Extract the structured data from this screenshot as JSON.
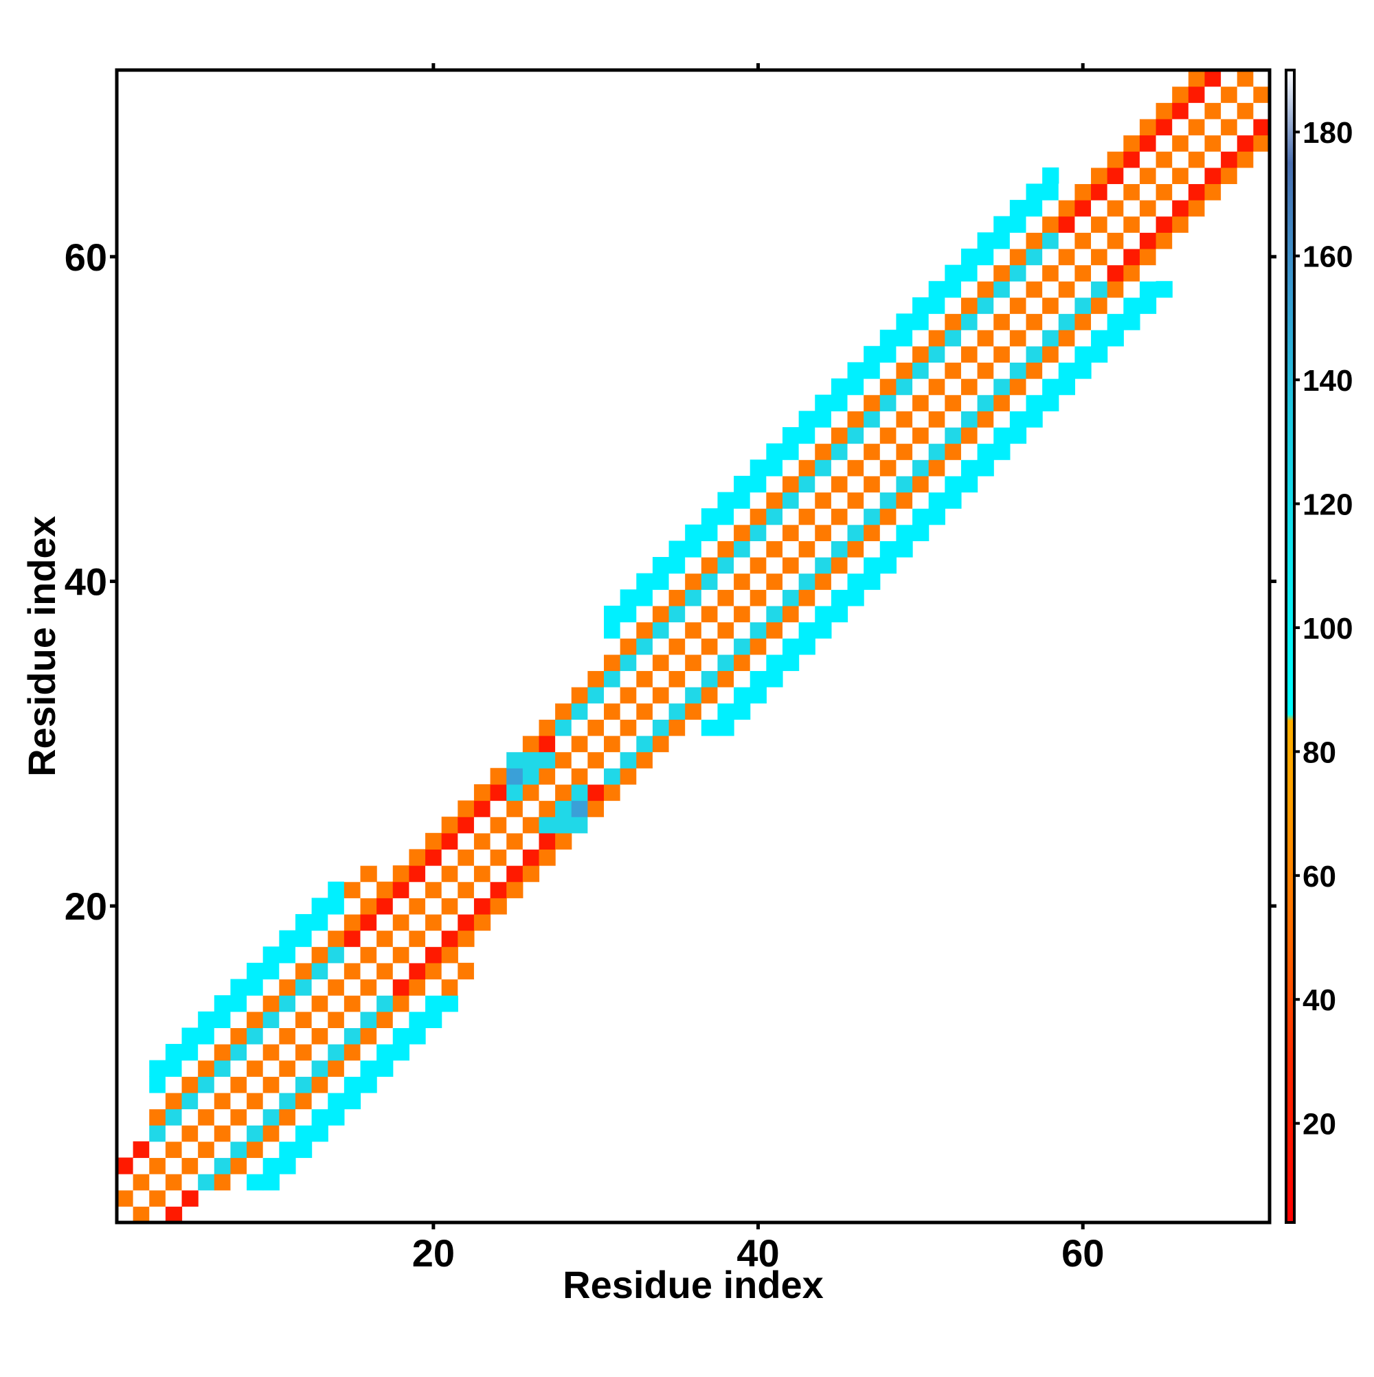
{
  "chart_data": {
    "type": "heatmap",
    "title": "",
    "xlabel": "Residue index",
    "ylabel": "Residue index",
    "xlim": [
      0.5,
      71.5
    ],
    "ylim": [
      0.5,
      71.5
    ],
    "x_ticks": [
      20,
      40,
      60
    ],
    "x_tick_labels": [
      "20",
      "40",
      "60"
    ],
    "y_ticks": [
      20,
      40,
      60
    ],
    "y_tick_labels": [
      "20",
      "40",
      "60"
    ],
    "grid": false,
    "colorbar": {
      "placement": "right",
      "range": [
        4,
        190
      ],
      "ticks": [
        20,
        40,
        60,
        80,
        100,
        120,
        140,
        160,
        180
      ],
      "tick_labels": [
        "20",
        "40",
        "60",
        "80",
        "100",
        "120",
        "140",
        "160",
        "180"
      ],
      "stops": [
        {
          "value": 4,
          "color": "#ff0000"
        },
        {
          "value": 30,
          "color": "#ff2a00"
        },
        {
          "value": 50,
          "color": "#ff6a00"
        },
        {
          "value": 72,
          "color": "#ffa000"
        },
        {
          "value": 85,
          "color": "#ffb000"
        },
        {
          "value": 86,
          "color": "#00ffff"
        },
        {
          "value": 110,
          "color": "#10e8f0"
        },
        {
          "value": 135,
          "color": "#20c8e0"
        },
        {
          "value": 155,
          "color": "#3a9ad0"
        },
        {
          "value": 175,
          "color": "#4a6fb0"
        },
        {
          "value": 190,
          "color": "#ffffff"
        }
      ]
    },
    "cell_colors": {
      "white": "#ffffff",
      "red": "#ff1a00",
      "orange_red": "#ff4a00",
      "orange": "#ff7a00",
      "amber": "#ffa000",
      "cyan": "#00f0ff",
      "light_blue": "#20d8e8",
      "blue": "#3aa0d8"
    },
    "notes": "Symmetric contact/angle matrix around diagonal; colour pattern per offset from diagonal",
    "band_profile": {
      "offset_colors": {
        "0": "white",
        "1": "orange",
        "2": "red",
        "3": "light_blue",
        "4": "cyan"
      }
    }
  }
}
